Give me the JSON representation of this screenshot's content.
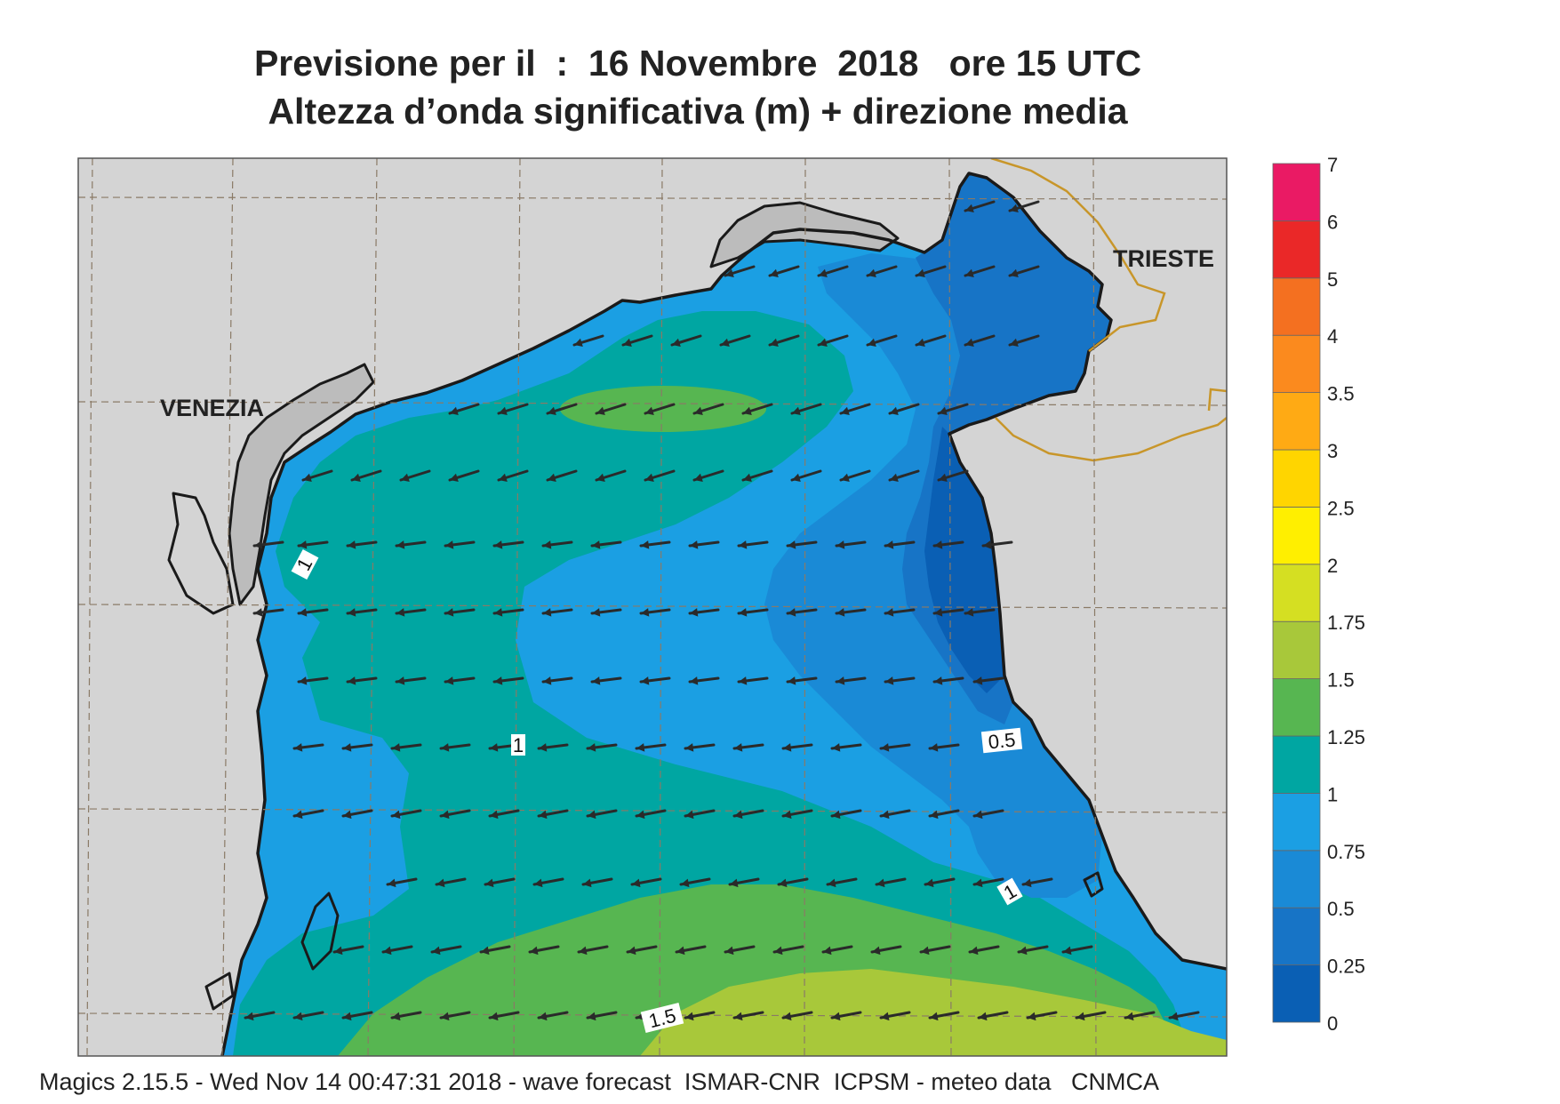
{
  "title": {
    "line1": "Previsione per il  :  16 Novembre  2018   ore 15 UTC",
    "line2": "Altezza d’onda significativa (m) + direzione media"
  },
  "places": [
    {
      "name": "VENEZIA"
    },
    {
      "name": "TRIESTE"
    }
  ],
  "contour_labels": [
    "1",
    "1",
    "0.5",
    "1",
    "1.5"
  ],
  "legend": {
    "ticks": [
      "0",
      "0.25",
      "0.5",
      "0.75",
      "1",
      "1.25",
      "1.5",
      "1.75",
      "2",
      "2.5",
      "3",
      "3.5",
      "4",
      "5",
      "6",
      "7"
    ],
    "colors": [
      "#0a5fb4",
      "#1774c6",
      "#1a8ad6",
      "#1b9fe3",
      "#00a6a2",
      "#57b651",
      "#a8c83a",
      "#d5df22",
      "#ffef00",
      "#ffd500",
      "#ffaa14",
      "#fb8a1e",
      "#f47020",
      "#ea2828",
      "#ea1a64"
    ]
  },
  "colors": {
    "land": "#d4d4d4",
    "lagoon_land": "#bcbcbc",
    "coast": "#1a1a1a",
    "border": "#c8962a",
    "grid": "#8a7a66",
    "arrow": "#2a2a2a"
  },
  "footer": "Magics 2.15.5 - Wed Nov 14 00:47:31 2018 - wave forecast  ISMAR-CNR  ICPSM - meteo data   CNMCA"
}
